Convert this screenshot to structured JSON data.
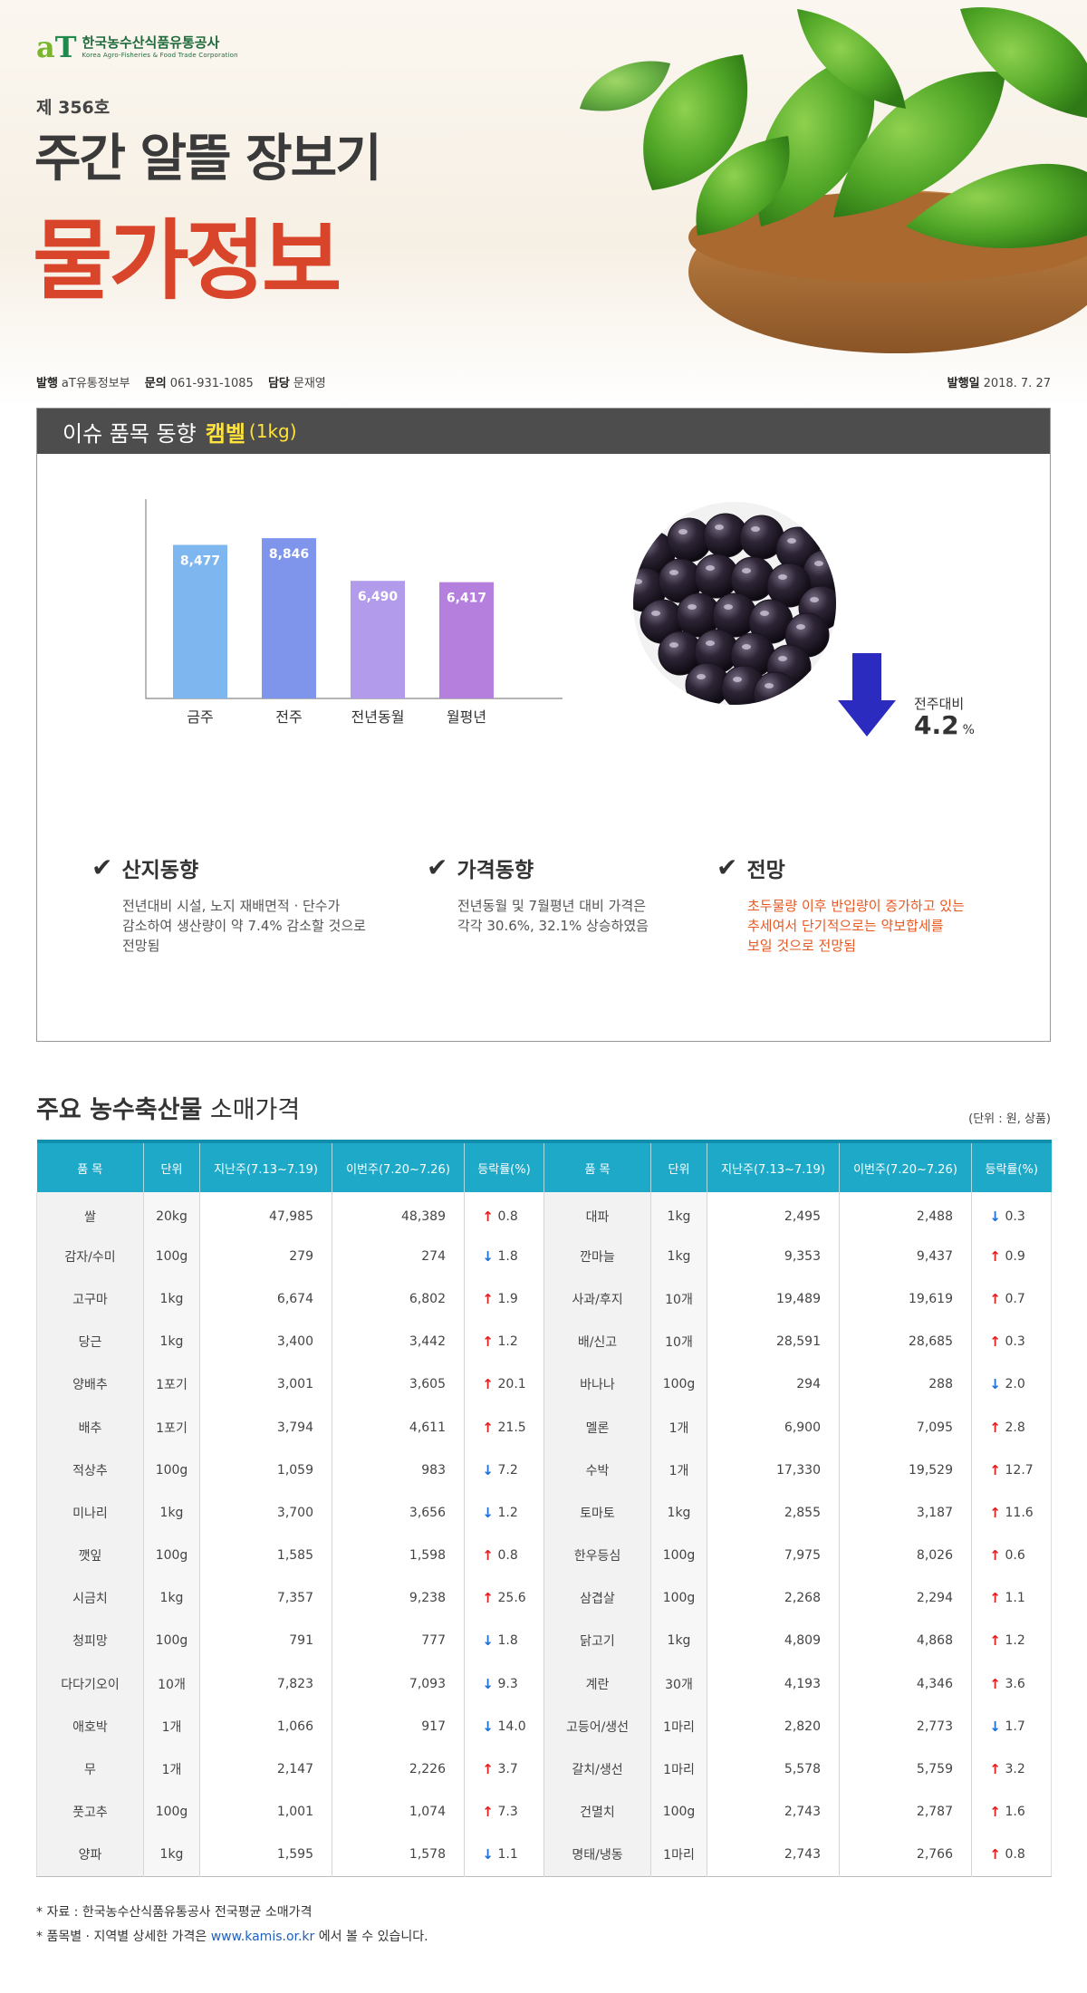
{
  "header": {
    "logo": {
      "mark_a": "a",
      "mark_t": "T",
      "korean": "한국농수산식품유통공사",
      "english": "Korea Agro-Fisheries & Food Trade Corporation"
    },
    "issue_no": "제 356호",
    "title_main": "주간 알뜰 장보기",
    "title_sub": "물가정보",
    "publisher_label": "발행",
    "publisher": "aT유통정보부",
    "contact_label": "문의",
    "contact": "061-931-1085",
    "manager_label": "담당",
    "manager": "문재영",
    "date_label": "발행일",
    "date": "2018. 7. 27"
  },
  "issue": {
    "label": "이슈 품목 동향",
    "item": "캠벨",
    "unit": "(1kg)",
    "change_label": "전주대비",
    "change_value": "4.2",
    "change_unit": "%",
    "change_direction": "down",
    "columns": [
      {
        "heading": "산지동향",
        "lines": [
          "전년대비 시설, 노지 재배면적 · 단수가",
          "감소하여 생산량이 약 7.4% 감소할 것으로",
          "전망됨"
        ],
        "color": "#555555"
      },
      {
        "heading": "가격동향",
        "lines": [
          "전년동월 및 7월평년 대비 가격은",
          "각각 30.6%, 32.1% 상승하였음"
        ],
        "color": "#555555"
      },
      {
        "heading": "전망",
        "lines": [
          "초두물량 이후 반입량이 증가하고 있는",
          "추세여서 단기적으로는 약보합세를",
          "보일 것으로 전망됨"
        ],
        "color": "#e8571f"
      }
    ]
  },
  "chart_data": {
    "type": "bar",
    "categories": [
      "금주",
      "전주",
      "전년동월",
      "월평년"
    ],
    "values": [
      8477,
      8846,
      6490,
      6417
    ],
    "labels": [
      "8,477",
      "8,846",
      "6,490",
      "6,417"
    ],
    "colors": [
      "#7eb6ef",
      "#7f95ec",
      "#b29bea",
      "#b57fde"
    ],
    "ylim": [
      0,
      11000
    ]
  },
  "prices": {
    "title_bold": "주요 농수축산물",
    "title_rest": "소매가격",
    "unit_note": "(단위 : 원, 상품)",
    "headers": [
      "품 목",
      "단위",
      "지난주(7.13~7.19)",
      "이번주(7.20~7.26)",
      "등락률(%)",
      "품 목",
      "단위",
      "지난주(7.13~7.19)",
      "이번주(7.20~7.26)",
      "등락률(%)"
    ],
    "rows": [
      {
        "left": {
          "name": "쌀",
          "unit": "20kg",
          "last": "47,985",
          "this": "48,389",
          "dir": "up",
          "rate": "0.8"
        },
        "right": {
          "name": "대파",
          "unit": "1kg",
          "last": "2,495",
          "this": "2,488",
          "dir": "down",
          "rate": "0.3"
        }
      },
      {
        "left": {
          "name": "감자/수미",
          "unit": "100g",
          "last": "279",
          "this": "274",
          "dir": "down",
          "rate": "1.8"
        },
        "right": {
          "name": "깐마늘",
          "unit": "1kg",
          "last": "9,353",
          "this": "9,437",
          "dir": "up",
          "rate": "0.9"
        }
      },
      {
        "left": {
          "name": "고구마",
          "unit": "1kg",
          "last": "6,674",
          "this": "6,802",
          "dir": "up",
          "rate": "1.9"
        },
        "right": {
          "name": "사과/후지",
          "unit": "10개",
          "last": "19,489",
          "this": "19,619",
          "dir": "up",
          "rate": "0.7"
        }
      },
      {
        "left": {
          "name": "당근",
          "unit": "1kg",
          "last": "3,400",
          "this": "3,442",
          "dir": "up",
          "rate": "1.2"
        },
        "right": {
          "name": "배/신고",
          "unit": "10개",
          "last": "28,591",
          "this": "28,685",
          "dir": "up",
          "rate": "0.3"
        }
      },
      {
        "left": {
          "name": "양배추",
          "unit": "1포기",
          "last": "3,001",
          "this": "3,605",
          "dir": "up",
          "rate": "20.1"
        },
        "right": {
          "name": "바나나",
          "unit": "100g",
          "last": "294",
          "this": "288",
          "dir": "down",
          "rate": "2.0"
        }
      },
      {
        "left": {
          "name": "배추",
          "unit": "1포기",
          "last": "3,794",
          "this": "4,611",
          "dir": "up",
          "rate": "21.5"
        },
        "right": {
          "name": "멜론",
          "unit": "1개",
          "last": "6,900",
          "this": "7,095",
          "dir": "up",
          "rate": "2.8"
        }
      },
      {
        "left": {
          "name": "적상추",
          "unit": "100g",
          "last": "1,059",
          "this": "983",
          "dir": "down",
          "rate": "7.2"
        },
        "right": {
          "name": "수박",
          "unit": "1개",
          "last": "17,330",
          "this": "19,529",
          "dir": "up",
          "rate": "12.7"
        }
      },
      {
        "left": {
          "name": "미나리",
          "unit": "1kg",
          "last": "3,700",
          "this": "3,656",
          "dir": "down",
          "rate": "1.2"
        },
        "right": {
          "name": "토마토",
          "unit": "1kg",
          "last": "2,855",
          "this": "3,187",
          "dir": "up",
          "rate": "11.6"
        }
      },
      {
        "left": {
          "name": "깻잎",
          "unit": "100g",
          "last": "1,585",
          "this": "1,598",
          "dir": "up",
          "rate": "0.8"
        },
        "right": {
          "name": "한우등심",
          "unit": "100g",
          "last": "7,975",
          "this": "8,026",
          "dir": "up",
          "rate": "0.6"
        }
      },
      {
        "left": {
          "name": "시금치",
          "unit": "1kg",
          "last": "7,357",
          "this": "9,238",
          "dir": "up",
          "rate": "25.6"
        },
        "right": {
          "name": "삼겹살",
          "unit": "100g",
          "last": "2,268",
          "this": "2,294",
          "dir": "up",
          "rate": "1.1"
        }
      },
      {
        "left": {
          "name": "청피망",
          "unit": "100g",
          "last": "791",
          "this": "777",
          "dir": "down",
          "rate": "1.8"
        },
        "right": {
          "name": "닭고기",
          "unit": "1kg",
          "last": "4,809",
          "this": "4,868",
          "dir": "up",
          "rate": "1.2"
        }
      },
      {
        "left": {
          "name": "다다기오이",
          "unit": "10개",
          "last": "7,823",
          "this": "7,093",
          "dir": "down",
          "rate": "9.3"
        },
        "right": {
          "name": "계란",
          "unit": "30개",
          "last": "4,193",
          "this": "4,346",
          "dir": "up",
          "rate": "3.6"
        }
      },
      {
        "left": {
          "name": "애호박",
          "unit": "1개",
          "last": "1,066",
          "this": "917",
          "dir": "down",
          "rate": "14.0"
        },
        "right": {
          "name": "고등어/생선",
          "unit": "1마리",
          "last": "2,820",
          "this": "2,773",
          "dir": "down",
          "rate": "1.7"
        }
      },
      {
        "left": {
          "name": "무",
          "unit": "1개",
          "last": "2,147",
          "this": "2,226",
          "dir": "up",
          "rate": "3.7"
        },
        "right": {
          "name": "갈치/생선",
          "unit": "1마리",
          "last": "5,578",
          "this": "5,759",
          "dir": "up",
          "rate": "3.2"
        }
      },
      {
        "left": {
          "name": "풋고추",
          "unit": "100g",
          "last": "1,001",
          "this": "1,074",
          "dir": "up",
          "rate": "7.3"
        },
        "right": {
          "name": "건멸치",
          "unit": "100g",
          "last": "2,743",
          "this": "2,787",
          "dir": "up",
          "rate": "1.6"
        }
      },
      {
        "left": {
          "name": "양파",
          "unit": "1kg",
          "last": "1,595",
          "this": "1,578",
          "dir": "down",
          "rate": "1.1"
        },
        "right": {
          "name": "명태/냉동",
          "unit": "1마리",
          "last": "2,743",
          "this": "2,766",
          "dir": "up",
          "rate": "0.8"
        }
      }
    ]
  },
  "footnotes": {
    "source": "* 자료 : 한국농수산식품유통공사 전국평균 소매가격",
    "detail_pre": "* 품목별 · 지역별 상세한 가격은 ",
    "link": "www.kamis.or.kr",
    "detail_post": " 에서 볼 수 있습니다."
  },
  "colors": {
    "title_red": "#d8452a",
    "header_teal": "#1fa9c9",
    "up_red": "#e02020",
    "down_blue": "#1e6fd6",
    "arrow_navy": "#2b2bbf",
    "outlook_orange": "#e8571f"
  },
  "icons": {
    "up": "arrow-up-icon",
    "down": "arrow-down-icon",
    "check": "check-icon"
  }
}
